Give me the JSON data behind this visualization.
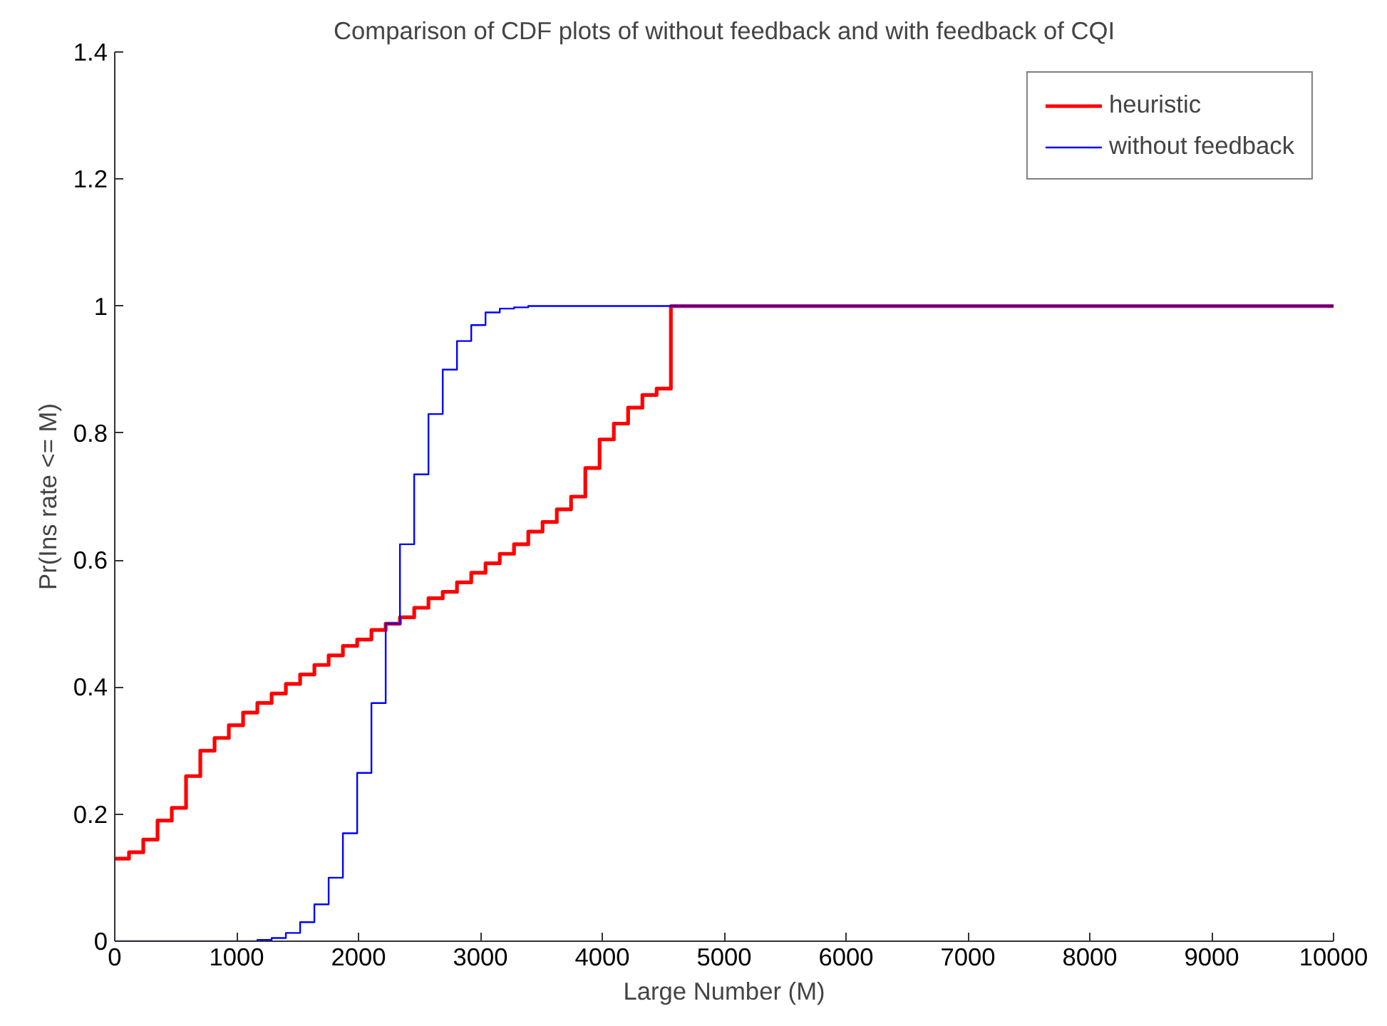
{
  "chart_data": {
    "type": "step",
    "title": "Comparison of CDF plots of without feedback and with feedback of CQI",
    "xlabel": "Large Number (M)",
    "ylabel": "Pr(Ins rate <= M)",
    "xlim": [
      0,
      10000
    ],
    "ylim": [
      0,
      1.4
    ],
    "xticks": [
      0,
      1000,
      2000,
      3000,
      4000,
      5000,
      6000,
      7000,
      8000,
      9000,
      10000
    ],
    "yticks": [
      0,
      0.2,
      0.4,
      0.6,
      0.8,
      1,
      1.2,
      1.4
    ],
    "grid": false,
    "legend": "top right",
    "marker": "none",
    "line_style": "solid",
    "series": [
      {
        "name": "heuristic",
        "color": "#ff0000",
        "x": [
          0,
          117,
          234,
          351,
          468,
          585,
          702,
          819,
          936,
          1053,
          1170,
          1287,
          1404,
          1521,
          1638,
          1755,
          1872,
          1989,
          2106,
          2223,
          2340,
          2457,
          2574,
          2691,
          2808,
          2925,
          3042,
          3159,
          3276,
          3393,
          3510,
          3627,
          3744,
          3861,
          3978,
          4095,
          4212,
          4329,
          4446,
          4563,
          10000
        ],
        "values": [
          0.13,
          0.14,
          0.16,
          0.19,
          0.21,
          0.26,
          0.3,
          0.32,
          0.34,
          0.36,
          0.375,
          0.39,
          0.405,
          0.42,
          0.435,
          0.45,
          0.465,
          0.475,
          0.49,
          0.5,
          0.51,
          0.525,
          0.54,
          0.55,
          0.565,
          0.58,
          0.595,
          0.61,
          0.625,
          0.645,
          0.66,
          0.68,
          0.7,
          0.745,
          0.79,
          0.815,
          0.84,
          0.86,
          0.87,
          1,
          1
        ]
      },
      {
        "name": "without feedback",
        "color": "#0000ff",
        "x": [
          0,
          1170,
          1287,
          1404,
          1521,
          1638,
          1755,
          1872,
          1989,
          2106,
          2223,
          2340,
          2457,
          2574,
          2691,
          2808,
          2925,
          3042,
          3159,
          3276,
          3393,
          10000
        ],
        "values": [
          0,
          0.002,
          0.005,
          0.013,
          0.03,
          0.058,
          0.1,
          0.17,
          0.265,
          0.375,
          0.5,
          0.625,
          0.735,
          0.83,
          0.9,
          0.945,
          0.97,
          0.99,
          0.996,
          0.998,
          1,
          1
        ]
      }
    ]
  }
}
